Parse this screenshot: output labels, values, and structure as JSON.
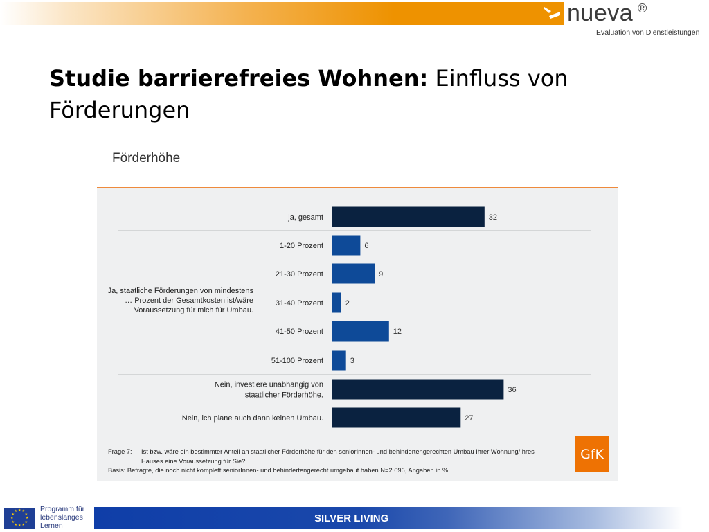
{
  "header": {
    "brand_name": "nueva",
    "brand_reg": "®",
    "brand_tagline": "Evaluation von Dienstleistungen",
    "accent_color": "#ee9200"
  },
  "slide": {
    "title_bold": "Studie barrierefreies Wohnen:",
    "title_normal": "Einfluss von Förderungen"
  },
  "figure": {
    "heading": "Förderhöhe",
    "group_label": [
      "Ja, staatliche Förderungen von mindestens",
      "… Prozent der Gesamtkosten ist/wäre",
      "Voraussetzung für mich für Umbau."
    ],
    "footnote": {
      "q_label": "Frage 7:",
      "q_text_1": "Ist bzw. wäre ein bestimmter Anteil an staatlicher Förderhöhe für den seniorInnen- und behindertengerechten Umbau Ihrer Wohnung/Ihres",
      "q_text_2": "Hauses eine Voraussetzung für Sie?",
      "basis": "Basis: Befragte, die noch nicht komplett seniorInnen- und behindertengerecht umgebaut haben N=2.696, Angaben in %"
    },
    "source_logo": "GfK"
  },
  "chart_data": {
    "type": "bar",
    "orientation": "horizontal",
    "categories": [
      "ja, gesamt",
      "1-20 Prozent",
      "21-30 Prozent",
      "31-40 Prozent",
      "41-50 Prozent",
      "51-100 Prozent",
      [
        "Nein, investiere unabhängig von",
        "staatlicher Förderhöhe."
      ],
      "Nein, ich plane auch dann keinen Umbau."
    ],
    "values": [
      32,
      6,
      9,
      2,
      12,
      3,
      36,
      27
    ],
    "bar_colors": [
      "#0a2240",
      "#0e4a98",
      "#0e4a98",
      "#0e4a98",
      "#0e4a98",
      "#0e4a98",
      "#0a2240",
      "#0a2240"
    ],
    "unit": "%",
    "xlim": [
      0,
      40
    ],
    "grid": false
  },
  "footer": {
    "eu_program": [
      "Programm für",
      "lebenslanges",
      "Lernen"
    ],
    "project_name": "SILVER LIVING"
  }
}
